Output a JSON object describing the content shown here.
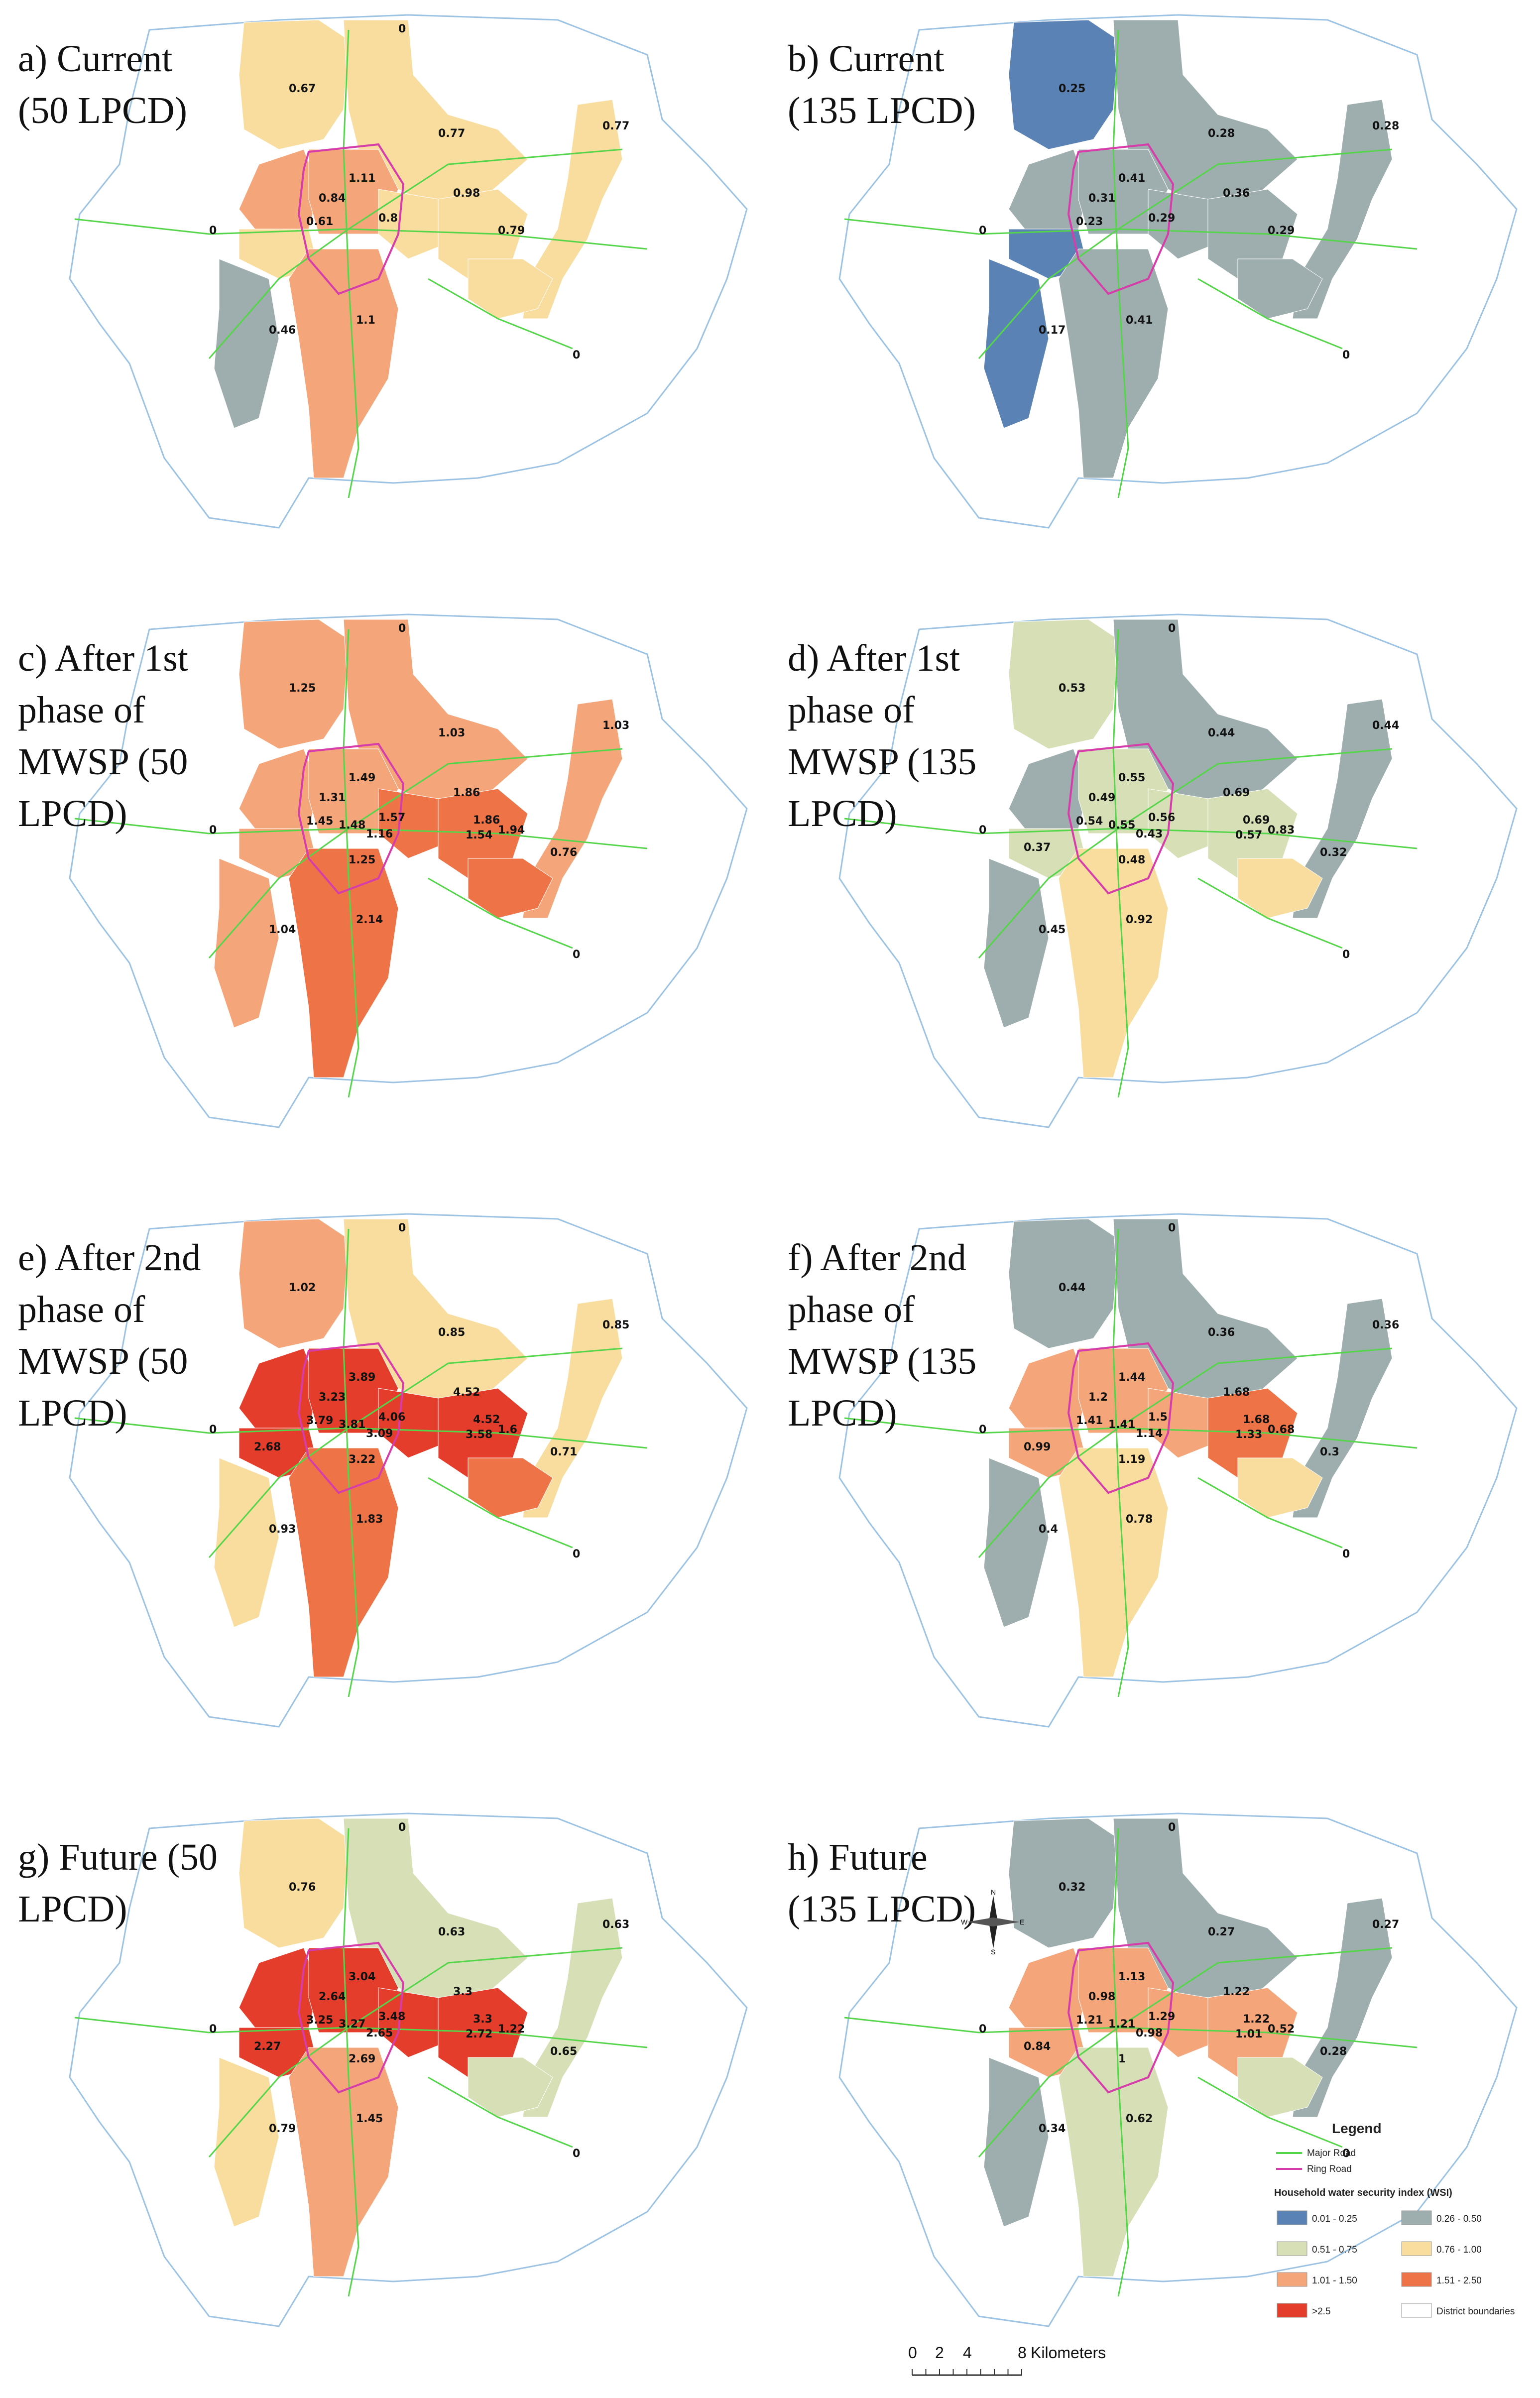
{
  "panels": [
    {
      "id": "a",
      "title": "a) Current\n(50 LPCD)",
      "labels": {
        "outer_n": "0",
        "outer_w": "0",
        "outer_se": "0",
        "nw": "0.67",
        "ne": "0.77",
        "fe": "0.77",
        "w": "0.84",
        "c": "1.11",
        "cw": "0.61",
        "ce": "0.8",
        "e": "0.98",
        "se": "0.79",
        "sw": "0.46",
        "s": "1.1"
      }
    },
    {
      "id": "b",
      "title": "b) Current\n(135 LPCD)",
      "labels": {
        "outer_n": "",
        "outer_w": "0",
        "outer_se": "0",
        "nw": "0.25",
        "ne": "0.28",
        "fe": "0.28",
        "w": "0.31",
        "c": "0.41",
        "cw": "0.23",
        "ce": "0.29",
        "e": "0.36",
        "se": "0.29",
        "sw": "0.17",
        "s": "0.41"
      }
    },
    {
      "id": "c",
      "title": "c) After 1st\nphase of\nMWSP (50\nLPCD)",
      "labels": {
        "outer_n": "0",
        "outer_w": "0",
        "outer_se": "0",
        "nw": "1.25",
        "ne": "1.03",
        "fe": "1.03",
        "w": "1.31",
        "c": "1.49",
        "cw": "1.45",
        "cw2": "1.48",
        "ce": "1.57",
        "ce2": "1.16",
        "e": "1.86",
        "e2": "1.86",
        "se": "1.94",
        "se2": "1.54",
        "se3": "0.76",
        "sw": "1.04",
        "cs": "1.25",
        "s": "2.14"
      }
    },
    {
      "id": "d",
      "title": "d) After 1st\nphase of\nMWSP (135\nLPCD)",
      "labels": {
        "outer_n": "0",
        "outer_w": "0",
        "outer_se": "0",
        "nw": "0.53",
        "ne": "0.44",
        "fe": "0.44",
        "w": "0.49",
        "c": "0.55",
        "cw": "0.54",
        "cw2": "0.55",
        "ce": "0.56",
        "ce2": "0.43",
        "e": "0.69",
        "e2": "0.69",
        "se": "0.83",
        "se2": "0.57",
        "se3": "0.32",
        "sw": "0.45",
        "cwl": "0.37",
        "cs": "0.48",
        "s": "0.92"
      }
    },
    {
      "id": "e",
      "title": "e) After 2nd\nphase of\nMWSP (50\nLPCD)",
      "labels": {
        "outer_n": "0",
        "outer_w": "0",
        "outer_se": "0",
        "nw": "1.02",
        "ne": "0.85",
        "fe": "0.85",
        "w": "3.23",
        "c": "3.89",
        "cw": "3.79",
        "cw2": "3.81",
        "ce": "4.06",
        "ce2": "3.09",
        "e": "4.52",
        "e2": "4.52",
        "se": "1.6",
        "se2": "3.58",
        "se3": "0.71",
        "sw": "0.93",
        "cwl": "2.68",
        "cs": "3.22",
        "s": "1.83"
      }
    },
    {
      "id": "f",
      "title": "f) After 2nd\nphase of\nMWSP (135\nLPCD)",
      "labels": {
        "outer_n": "0",
        "outer_w": "0",
        "outer_se": "0",
        "nw": "0.44",
        "ne": "0.36",
        "fe": "0.36",
        "w": "1.2",
        "c": "1.44",
        "cw": "1.41",
        "cw2": "1.41",
        "ce": "1.5",
        "ce2": "1.14",
        "e": "1.68",
        "e2": "1.68",
        "se": "0.68",
        "se2": "1.33",
        "se3": "0.3",
        "sw": "0.4",
        "cwl": "0.99",
        "cs": "1.19",
        "s": "0.78"
      }
    },
    {
      "id": "g",
      "title": "g) Future (50\nLPCD)",
      "labels": {
        "outer_n": "0",
        "outer_w": "0",
        "outer_se": "0",
        "nw": "0.76",
        "ne": "0.63",
        "fe": "0.63",
        "w": "2.64",
        "c": "3.04",
        "cw": "3.25",
        "cw2": "3.27",
        "ce": "3.48",
        "ce2": "2.65",
        "e": "3.3",
        "e2": "3.3",
        "se": "1.22",
        "se2": "2.72",
        "se3": "0.65",
        "sw": "0.79",
        "cwl": "2.27",
        "cs": "2.69",
        "s": "1.45"
      }
    },
    {
      "id": "h",
      "title": "h) Future\n(135 LPCD)",
      "labels": {
        "outer_n": "0",
        "outer_w": "0",
        "outer_se": "0",
        "nw": "0.32",
        "ne": "0.27",
        "fe": "0.27",
        "w": "0.98",
        "c": "1.13",
        "cw": "1.21",
        "cw2": "1.21",
        "ce": "1.29",
        "ce2": "0.98",
        "e": "1.22",
        "e2": "1.22",
        "se": "0.52",
        "se2": "1.01",
        "se3": "0.28",
        "sw": "0.34",
        "cwl": "0.84",
        "cs": "1",
        "s": "0.62"
      }
    }
  ],
  "legend": {
    "title": "Legend",
    "major_road": "Major Road",
    "ring_road": "Ring Road",
    "index_title": "Household water security index (WSI)",
    "classes": [
      {
        "label": "0.01 - 0.25",
        "color": "#5b82b4"
      },
      {
        "label": "0.26 - 0.50",
        "color": "#9eadad"
      },
      {
        "label": "0.51 - 0.75",
        "color": "#d6dfb6"
      },
      {
        "label": "0.76 - 1.00",
        "color": "#f8dd9e"
      },
      {
        "label": "1.01 - 1.50",
        "color": "#f4a57a"
      },
      {
        "label": "1.51 - 2.50",
        "color": "#ee7448"
      },
      {
        "label": ">2.5",
        "color": "#e43d2b"
      },
      {
        "label": "District boundaries",
        "color": "#ffffff"
      }
    ],
    "road_color": "#55d64a",
    "ring_color": "#d63caa",
    "boundary_color": "#9cc3e4"
  },
  "scale": {
    "ticks": [
      "0",
      "2",
      "4",
      "8"
    ],
    "unit": "Kilometers"
  },
  "north": {
    "n": "N",
    "s": "S",
    "e": "E",
    "w": "W"
  }
}
